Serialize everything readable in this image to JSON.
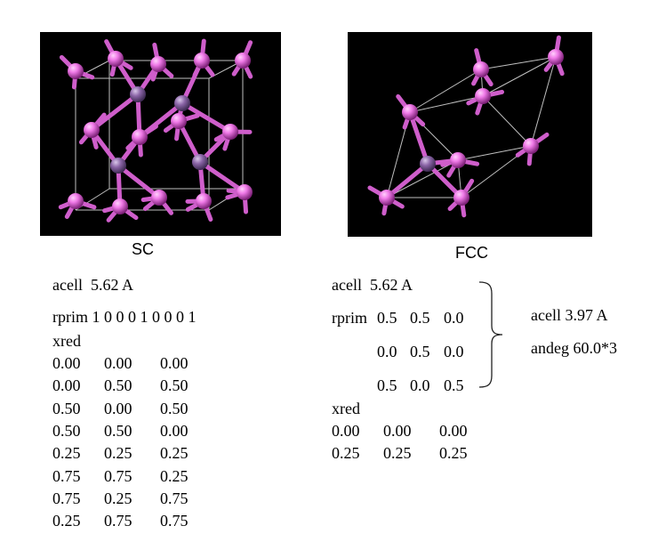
{
  "sc": {
    "caption": "SC",
    "acell": "acell  5.62 A",
    "rprim": "rprim 1 0 0 0 1 0 0 0 1",
    "xred_label": "xred",
    "xred": [
      [
        "0.00",
        "0.00",
        "0.00"
      ],
      [
        "0.00",
        "0.50",
        "0.50"
      ],
      [
        "0.50",
        "0.00",
        "0.50"
      ],
      [
        "0.50",
        "0.50",
        "0.00"
      ],
      [
        "0.25",
        "0.25",
        "0.25"
      ],
      [
        "0.75",
        "0.75",
        "0.25"
      ],
      [
        "0.75",
        "0.25",
        "0.75"
      ],
      [
        "0.25",
        "0.75",
        "0.75"
      ]
    ]
  },
  "fcc": {
    "caption": "FCC",
    "acell": "acell  5.62 A",
    "rprim_label": "rprim",
    "rprim": [
      [
        "0.5",
        "0.5",
        "0.0"
      ],
      [
        "0.0",
        "0.5",
        "0.0"
      ],
      [
        "0.5",
        "0.0",
        "0.5"
      ]
    ],
    "xred_label": "xred",
    "xred": [
      [
        "0.00",
        "0.00",
        "0.00"
      ],
      [
        "0.25",
        "0.25",
        "0.25"
      ]
    ],
    "equiv_acell": "acell 3.97 A",
    "equiv_angdeg": "andeg 60.0*3"
  },
  "colors": {
    "atom": "#d04cc8",
    "atom_light": "#f07ae8",
    "atom_inner": "#8a64a6",
    "bond": "#cf5ecb",
    "edge": "#bfbfbf",
    "background": "#000000"
  }
}
